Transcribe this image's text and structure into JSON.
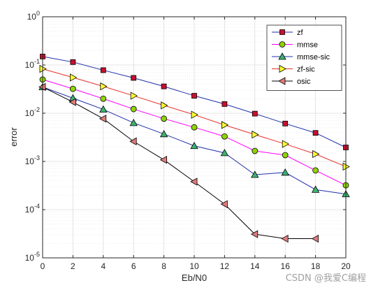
{
  "chart_data": {
    "type": "line",
    "title": "",
    "xlabel": "Eb/N0",
    "ylabel": "error",
    "xscale": "linear",
    "yscale": "log",
    "xlim": [
      0,
      20
    ],
    "ylim": [
      1e-05,
      1
    ],
    "x_ticks": [
      0,
      2,
      4,
      6,
      8,
      10,
      12,
      14,
      16,
      18,
      20
    ],
    "y_ticks": [
      {
        "value": 1,
        "base": "10",
        "exp": "0"
      },
      {
        "value": 0.1,
        "base": "10",
        "exp": "-1"
      },
      {
        "value": 0.01,
        "base": "10",
        "exp": "-2"
      },
      {
        "value": 0.001,
        "base": "10",
        "exp": "-3"
      },
      {
        "value": 0.0001,
        "base": "10",
        "exp": "-4"
      },
      {
        "value": 1e-05,
        "base": "10",
        "exp": "-5"
      }
    ],
    "grid": true,
    "legend_position": "top-right",
    "series": [
      {
        "name": "zf",
        "color": "#1f2fa8",
        "marker": "square",
        "marker_color": "#c8102e",
        "x": [
          0,
          2,
          4,
          6,
          8,
          10,
          12,
          14,
          16,
          18,
          20
        ],
        "values": [
          0.15,
          0.115,
          0.078,
          0.054,
          0.036,
          0.023,
          0.0155,
          0.0098,
          0.0061,
          0.0039,
          0.00195
        ]
      },
      {
        "name": "mmse",
        "color": "#ff00ff",
        "marker": "circle",
        "marker_color": "#8fd400",
        "x": [
          0,
          2,
          4,
          6,
          8,
          10,
          12,
          14,
          16,
          18,
          20
        ],
        "values": [
          0.05,
          0.032,
          0.02,
          0.0122,
          0.0077,
          0.0051,
          0.0033,
          0.00165,
          0.00135,
          0.00065,
          0.00032
        ]
      },
      {
        "name": "mmse-sic",
        "color": "#1f2fa8",
        "marker": "triangle-up",
        "marker_color": "#3cb371",
        "x": [
          0,
          2,
          4,
          6,
          8,
          10,
          12,
          14,
          16,
          18,
          20
        ],
        "values": [
          0.035,
          0.0205,
          0.012,
          0.0063,
          0.0037,
          0.0021,
          0.0015,
          0.00053,
          0.00059,
          0.00026,
          0.00021
        ]
      },
      {
        "name": "zf-sic",
        "color": "#e8302a",
        "marker": "triangle-right",
        "marker_color": "#ffff33",
        "x": [
          0,
          2,
          4,
          6,
          8,
          10,
          12,
          14,
          16,
          18,
          20
        ],
        "values": [
          0.083,
          0.055,
          0.036,
          0.023,
          0.0145,
          0.0093,
          0.0057,
          0.0036,
          0.0023,
          0.00142,
          0.00078
        ]
      },
      {
        "name": "osic",
        "color": "#000000",
        "marker": "triangle-left",
        "marker_color": "#e07b7b",
        "x": [
          0,
          2,
          4,
          6,
          8,
          10,
          12,
          14,
          16,
          18
        ],
        "values": [
          0.035,
          0.017,
          0.0077,
          0.0026,
          0.00108,
          0.00038,
          0.00013,
          3.1e-05,
          2.5e-05,
          2.5e-05
        ]
      }
    ]
  },
  "watermark": "CSDN @我爱C编程"
}
